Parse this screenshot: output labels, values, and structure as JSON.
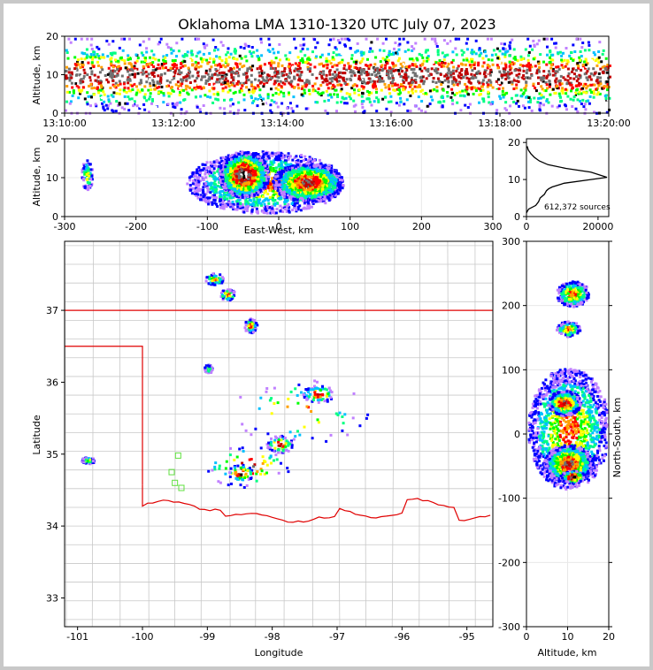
{
  "chart_data": [
    {
      "type": "heatmap",
      "panel": "time-altitude",
      "title": "Oklahoma LMA 1310-1320 UTC July 07, 2023",
      "ylabel": "Altitude, km",
      "xlabel": "",
      "xticks": [
        "13:10:00",
        "13:12:00",
        "13:14:00",
        "13:16:00",
        "13:18:00",
        "13:20:00"
      ],
      "yticks": [
        0,
        10,
        20
      ],
      "xlim": [
        0,
        10
      ],
      "ylim": [
        0,
        20
      ],
      "note": "dense band of sources 5-15 km across full period, core near 9-12 km"
    },
    {
      "type": "heatmap",
      "panel": "east-west-altitude",
      "xlabel": "East-West, km",
      "ylabel": "Altitude, km",
      "xticks": [
        -300,
        -200,
        -100,
        0,
        100,
        200,
        300
      ],
      "yticks": [
        0,
        10,
        20
      ],
      "xlim": [
        -300,
        300
      ],
      "ylim": [
        0,
        20
      ],
      "blobs": [
        {
          "x": -270,
          "y": 11,
          "rx": 8,
          "ry": 4,
          "level": 2
        },
        {
          "x": -20,
          "y": 9,
          "rx": 110,
          "ry": 8,
          "level": 3
        },
        {
          "x": -50,
          "y": 11,
          "rx": 35,
          "ry": 6,
          "level": 5
        },
        {
          "x": 40,
          "y": 9,
          "rx": 50,
          "ry": 5,
          "level": 4
        }
      ]
    },
    {
      "type": "line",
      "panel": "altitude-histogram",
      "annotation": "612,372 sources",
      "xticks": [
        0,
        20000
      ],
      "yticks": [
        0,
        10,
        20
      ],
      "xlim": [
        0,
        23000
      ],
      "ylim": [
        0,
        21
      ],
      "series": [
        {
          "x": [
            0,
            600,
            2600,
            3400,
            3800,
            5000,
            5600,
            6200,
            7200,
            10500,
            18000,
            22500,
            18000,
            11000,
            6000,
            3600,
            2200,
            1200,
            500,
            200
          ],
          "y": [
            1,
            2,
            3,
            4,
            5,
            6,
            7,
            7.5,
            8,
            9,
            10,
            10.6,
            12,
            13,
            14,
            15,
            16,
            17,
            18,
            19
          ]
        }
      ]
    },
    {
      "type": "heatmap",
      "panel": "plan-view",
      "xlabel": "Longitude",
      "ylabel": "Latitude",
      "xticks": [
        -101,
        -100,
        -99,
        -98,
        -97,
        -96,
        -95
      ],
      "yticks": [
        33,
        34,
        35,
        36,
        37
      ],
      "xlim": [
        -101.2,
        -94.6
      ],
      "ylim": [
        32.6,
        37.96
      ],
      "blobs": [
        {
          "x": -98.9,
          "y": 37.45,
          "rx": 0.15,
          "ry": 0.08,
          "level": 3
        },
        {
          "x": -98.7,
          "y": 37.23,
          "rx": 0.12,
          "ry": 0.08,
          "level": 3
        },
        {
          "x": -98.35,
          "y": 36.8,
          "rx": 0.1,
          "ry": 0.1,
          "level": 3
        },
        {
          "x": -99.0,
          "y": 36.2,
          "rx": 0.06,
          "ry": 0.06,
          "level": 2
        },
        {
          "x": -100.85,
          "y": 34.93,
          "rx": 0.1,
          "ry": 0.05,
          "level": 2
        },
        {
          "x": -97.6,
          "y": 35.6,
          "rx": 1.1,
          "ry": 0.45,
          "level": 3
        },
        {
          "x": -98.4,
          "y": 34.85,
          "rx": 0.65,
          "ry": 0.3,
          "level": 4
        },
        {
          "x": -98.5,
          "y": 34.75,
          "rx": 0.2,
          "ry": 0.12,
          "level": 5
        },
        {
          "x": -97.3,
          "y": 35.85,
          "rx": 0.25,
          "ry": 0.12,
          "level": 4
        },
        {
          "x": -97.9,
          "y": 35.15,
          "rx": 0.2,
          "ry": 0.12,
          "level": 4
        }
      ],
      "stations": [
        [
          -99.45,
          34.98
        ],
        [
          -99.55,
          34.75
        ],
        [
          -99.5,
          34.6
        ],
        [
          -99.4,
          34.53
        ]
      ]
    },
    {
      "type": "heatmap",
      "panel": "altitude-north-south",
      "xlabel": "Altitude, km",
      "ylabel": "North-South, km",
      "xticks": [
        0,
        10,
        20
      ],
      "yticks": [
        -300,
        -200,
        -100,
        0,
        100,
        200,
        300
      ],
      "xlim": [
        0,
        20
      ],
      "ylim": [
        -300,
        300
      ],
      "blobs": [
        {
          "x": 11,
          "y": 220,
          "rx": 4,
          "ry": 20,
          "level": 3
        },
        {
          "x": 10,
          "y": 165,
          "rx": 3,
          "ry": 12,
          "level": 3
        },
        {
          "x": 10,
          "y": 10,
          "rx": 10,
          "ry": 95,
          "level": 3
        },
        {
          "x": 10,
          "y": -45,
          "rx": 6,
          "ry": 30,
          "level": 4
        },
        {
          "x": 11,
          "y": -65,
          "rx": 3,
          "ry": 10,
          "level": 5
        },
        {
          "x": 9,
          "y": 50,
          "rx": 4,
          "ry": 20,
          "level": 4
        }
      ]
    }
  ]
}
